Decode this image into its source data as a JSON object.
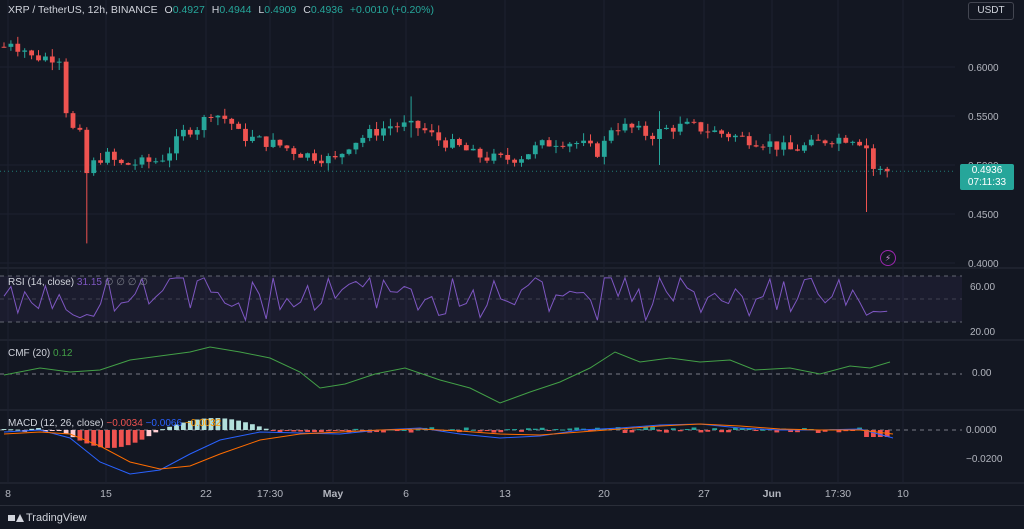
{
  "header": {
    "symbol": "XRP / TetherUS, 12h, BINANCE",
    "open_label": "O",
    "open": "0.4927",
    "high_label": "H",
    "high": "0.4944",
    "low_label": "L",
    "low": "0.4909",
    "close_label": "C",
    "close": "0.4936",
    "change": "+0.0010 (+0.20%)"
  },
  "currency_button": "USDT",
  "last_price": {
    "value": "0.4936",
    "countdown": "07:11:33"
  },
  "indicators": {
    "rsi": {
      "label": "RSI (14, close)",
      "value": "31.15",
      "extra": "∅ ∅ ∅ ∅",
      "levels": [
        "60.00",
        "20.00"
      ]
    },
    "cmf": {
      "label": "CMF (20)",
      "value": "0.12",
      "levels": [
        "0.00"
      ]
    },
    "macd": {
      "label": "MACD (12, 26, close)",
      "v1": "−0.0034",
      "v2": "−0.0066",
      "v3": "−0.0032",
      "levels": [
        "0.0000",
        "−0.0200"
      ]
    }
  },
  "colors": {
    "up": "#26a69a",
    "down": "#ef5350",
    "rsi": "#7e57c2",
    "cmf": "#43a047",
    "macd": "#2962ff",
    "signal": "#ff6d00"
  },
  "footer": {
    "brand": "TradingView"
  },
  "chart_data": {
    "type": "candlestick",
    "title": "XRP / TetherUS, 12h, BINANCE",
    "x_ticks": [
      "8",
      "15",
      "22",
      "17:30",
      "May",
      "6",
      "13",
      "20",
      "27",
      "Jun",
      "17:30",
      "10"
    ],
    "y_ticks": [
      "0.6000",
      "0.5500",
      "0.5000",
      "0.4500",
      "0.4000"
    ],
    "ylim": [
      0.39,
      0.655
    ],
    "legend": "top-left",
    "grid": true
  }
}
